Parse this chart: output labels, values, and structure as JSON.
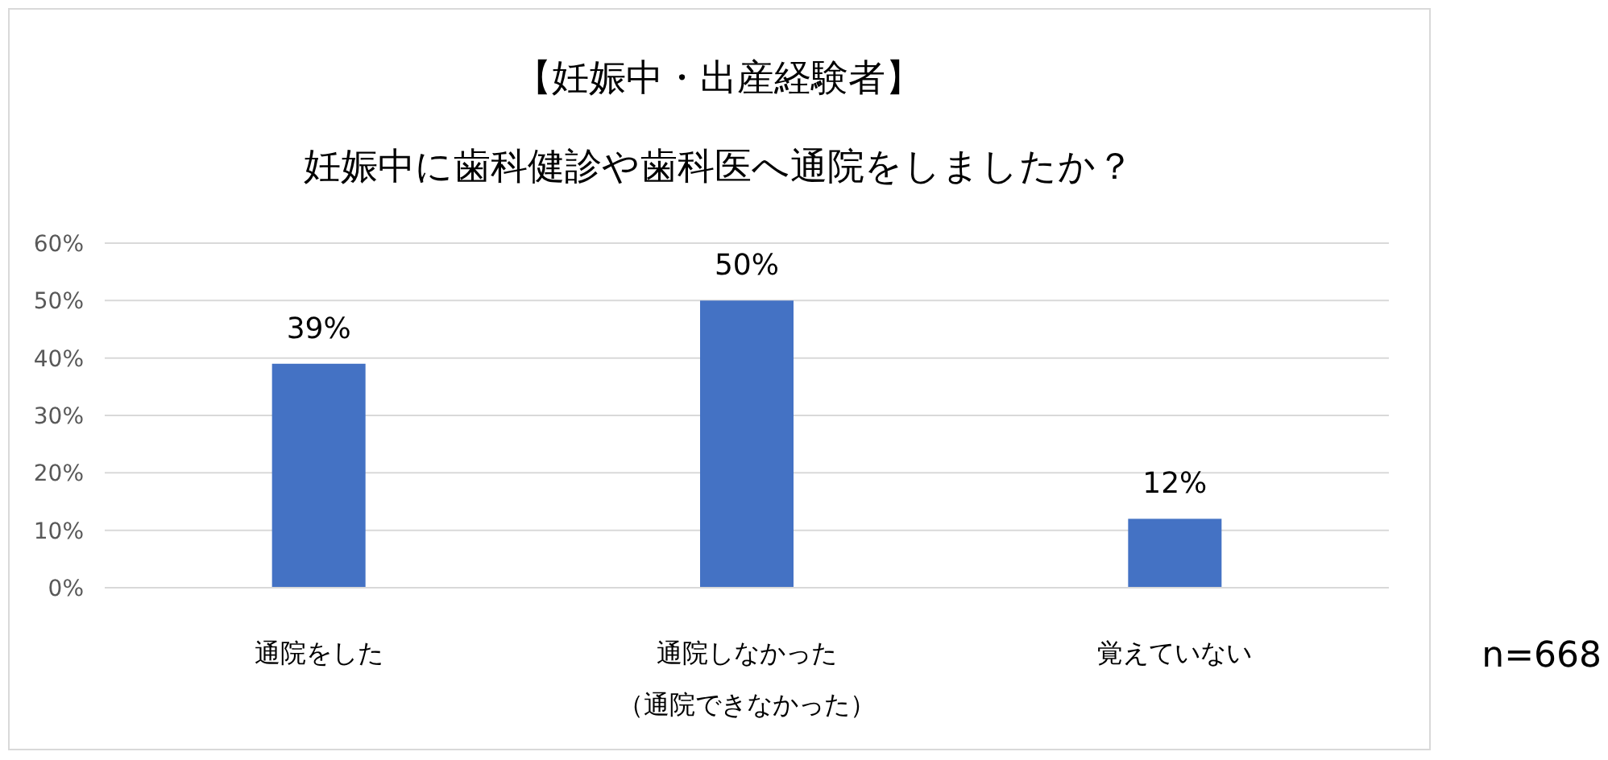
{
  "chart_data": {
    "type": "bar",
    "title": "【妊娠中・出産経験者】",
    "subtitle": "妊娠中に歯科健診や歯科医へ通院をしましたか？",
    "categories": [
      "通院をした",
      "通院しなかった（通院できなかった）",
      "覚えていない"
    ],
    "values": [
      39,
      50,
      12
    ],
    "value_labels": [
      "39%",
      "50%",
      "12%"
    ],
    "color": "#4472c4",
    "ylim": [
      0,
      60
    ],
    "yticks": [
      {
        "value": 0,
        "label": "0%"
      },
      {
        "value": 10,
        "label": "10%"
      },
      {
        "value": 20,
        "label": "20%"
      },
      {
        "value": 30,
        "label": "30%"
      },
      {
        "value": 40,
        "label": "40%"
      },
      {
        "value": 50,
        "label": "50%"
      },
      {
        "value": 60,
        "label": "60%"
      }
    ],
    "grid": "y",
    "annotations": [
      "n=668"
    ]
  }
}
